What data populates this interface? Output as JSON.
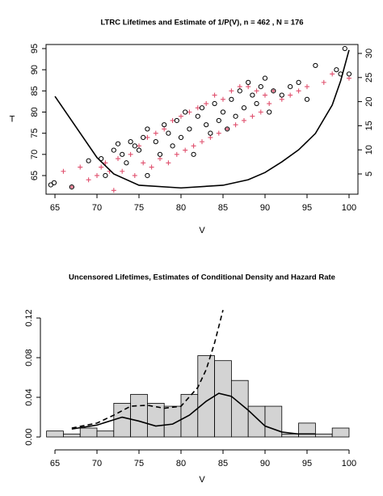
{
  "chart_data": [
    {
      "type": "scatter",
      "title": "LTRC Lifetimes and Estimate of 1/P(V),  n = 462 , N = 176",
      "xlabel": "V",
      "ylabel": "T",
      "xlim": [
        63.94,
        101.06
      ],
      "ylim": [
        60.6,
        95.96
      ],
      "y2lim": [
        0.8,
        31.85
      ],
      "xticks": [
        65,
        70,
        75,
        80,
        85,
        90,
        95,
        100
      ],
      "yticks": [
        65,
        70,
        75,
        80,
        85,
        90,
        95
      ],
      "y2ticks": [
        5,
        10,
        15,
        20,
        25,
        30
      ],
      "series": [
        {
          "marker": "plus",
          "color": "#e0506e",
          "x": [
            66,
            67,
            68,
            69,
            70,
            70.5,
            71,
            71.5,
            72,
            72.5,
            73,
            74,
            74.5,
            75,
            75.5,
            76,
            76.5,
            77,
            77.5,
            78,
            78.5,
            79,
            79.5,
            80,
            80.5,
            81,
            81.5,
            82,
            82.5,
            83,
            83.5,
            84,
            84.5,
            85,
            85.5,
            86,
            86.5,
            87,
            87.5,
            88,
            88.5,
            89,
            89.5,
            90,
            90.5,
            91,
            92,
            93,
            94,
            95,
            97,
            98,
            100
          ],
          "values": [
            66,
            62.3,
            67,
            64,
            65,
            67,
            68,
            66,
            61.5,
            69,
            66,
            70,
            65,
            72,
            68,
            74,
            67,
            75,
            69,
            76,
            68,
            78,
            70,
            79,
            71,
            80,
            72,
            81,
            73,
            82,
            74,
            84,
            75,
            83,
            76,
            85,
            77,
            86,
            78,
            86,
            79,
            85,
            80,
            84,
            82,
            85,
            83,
            84,
            85,
            86,
            87,
            89,
            88
          ]
        },
        {
          "marker": "circle",
          "color": "#000000",
          "x": [
            64.5,
            64.9,
            67,
            69,
            70.5,
            71,
            72,
            72.5,
            73,
            73.5,
            74,
            74.5,
            75,
            75.5,
            76,
            76,
            77,
            77.5,
            78,
            78.5,
            79,
            79.5,
            80,
            80.5,
            81,
            81.5,
            82,
            82.5,
            83,
            83.5,
            84,
            84.5,
            85,
            85.5,
            86,
            86.5,
            87,
            87.5,
            88,
            88.5,
            89,
            89.5,
            90,
            90.5,
            91,
            92,
            93,
            94,
            95,
            96,
            98.5,
            99,
            99.5,
            100
          ],
          "values": [
            62.8,
            63.3,
            62.3,
            68.5,
            69,
            65,
            71,
            72.5,
            70,
            68,
            73,
            72,
            71,
            74,
            76,
            65,
            73,
            70,
            77,
            75,
            72,
            78,
            74,
            80,
            76,
            70,
            79,
            81,
            77,
            75,
            82,
            78,
            80,
            76,
            83,
            79,
            85,
            81,
            87,
            84,
            82,
            86,
            88,
            80,
            85,
            84,
            86,
            87,
            83,
            91,
            90,
            89,
            95,
            89
          ]
        },
        {
          "marker": "line",
          "axis": "y2",
          "color": "#000000",
          "x": [
            65,
            70,
            72,
            75,
            80,
            85,
            88,
            90,
            92,
            94,
            96,
            98,
            99,
            100
          ],
          "values": [
            21.1,
            8.4,
            5,
            2.65,
            2.1,
            2.65,
            3.8,
            5.3,
            7.5,
            10,
            13.4,
            19.3,
            24.3,
            30.7
          ]
        }
      ]
    },
    {
      "type": "histogram",
      "title": "Uncensored Lifetimes, Estimates of Conditional Density and Hazard Rate",
      "xlabel": "V",
      "xlim": [
        63.94,
        101.06
      ],
      "ylim": [
        -0.0065,
        0.1388
      ],
      "xticks": [
        65,
        70,
        75,
        80,
        85,
        90,
        95,
        100
      ],
      "yticks": [
        {
          "value": 0,
          "label": "0.00"
        },
        {
          "value": 0.04,
          "label": "0.04"
        },
        {
          "value": 0.08,
          "label": "0.08"
        },
        {
          "value": 0.12,
          "label": "0.12"
        }
      ],
      "color": "#d3d3d3",
      "bins": [
        64,
        66,
        68,
        70,
        72,
        74,
        76,
        78,
        80,
        82,
        84,
        86,
        88,
        90,
        92,
        94,
        96,
        98,
        100
      ],
      "counts": [
        0.006,
        0.003,
        0.009,
        0.006,
        0.034,
        0.043,
        0.034,
        0.031,
        0.043,
        0.082,
        0.077,
        0.057,
        0.031,
        0.031,
        0.003,
        0.014,
        0.003,
        0.009
      ],
      "series": [
        {
          "marker": "line",
          "color": "#000000",
          "x": [
            67,
            70,
            73,
            75,
            77,
            79,
            81,
            83,
            84.5,
            86,
            88,
            90,
            92,
            94,
            96
          ],
          "values": [
            0.008,
            0.012,
            0.02,
            0.016,
            0.011,
            0.013,
            0.022,
            0.036,
            0.044,
            0.041,
            0.027,
            0.011,
            0.005,
            0.003,
            0.003
          ]
        },
        {
          "marker": "line",
          "dash": true,
          "color": "#000000",
          "x": [
            67,
            70,
            72,
            74,
            76,
            78,
            80,
            82,
            83,
            84,
            85
          ],
          "values": [
            0.009,
            0.014,
            0.022,
            0.031,
            0.032,
            0.029,
            0.031,
            0.05,
            0.068,
            0.095,
            0.128
          ]
        }
      ]
    }
  ]
}
